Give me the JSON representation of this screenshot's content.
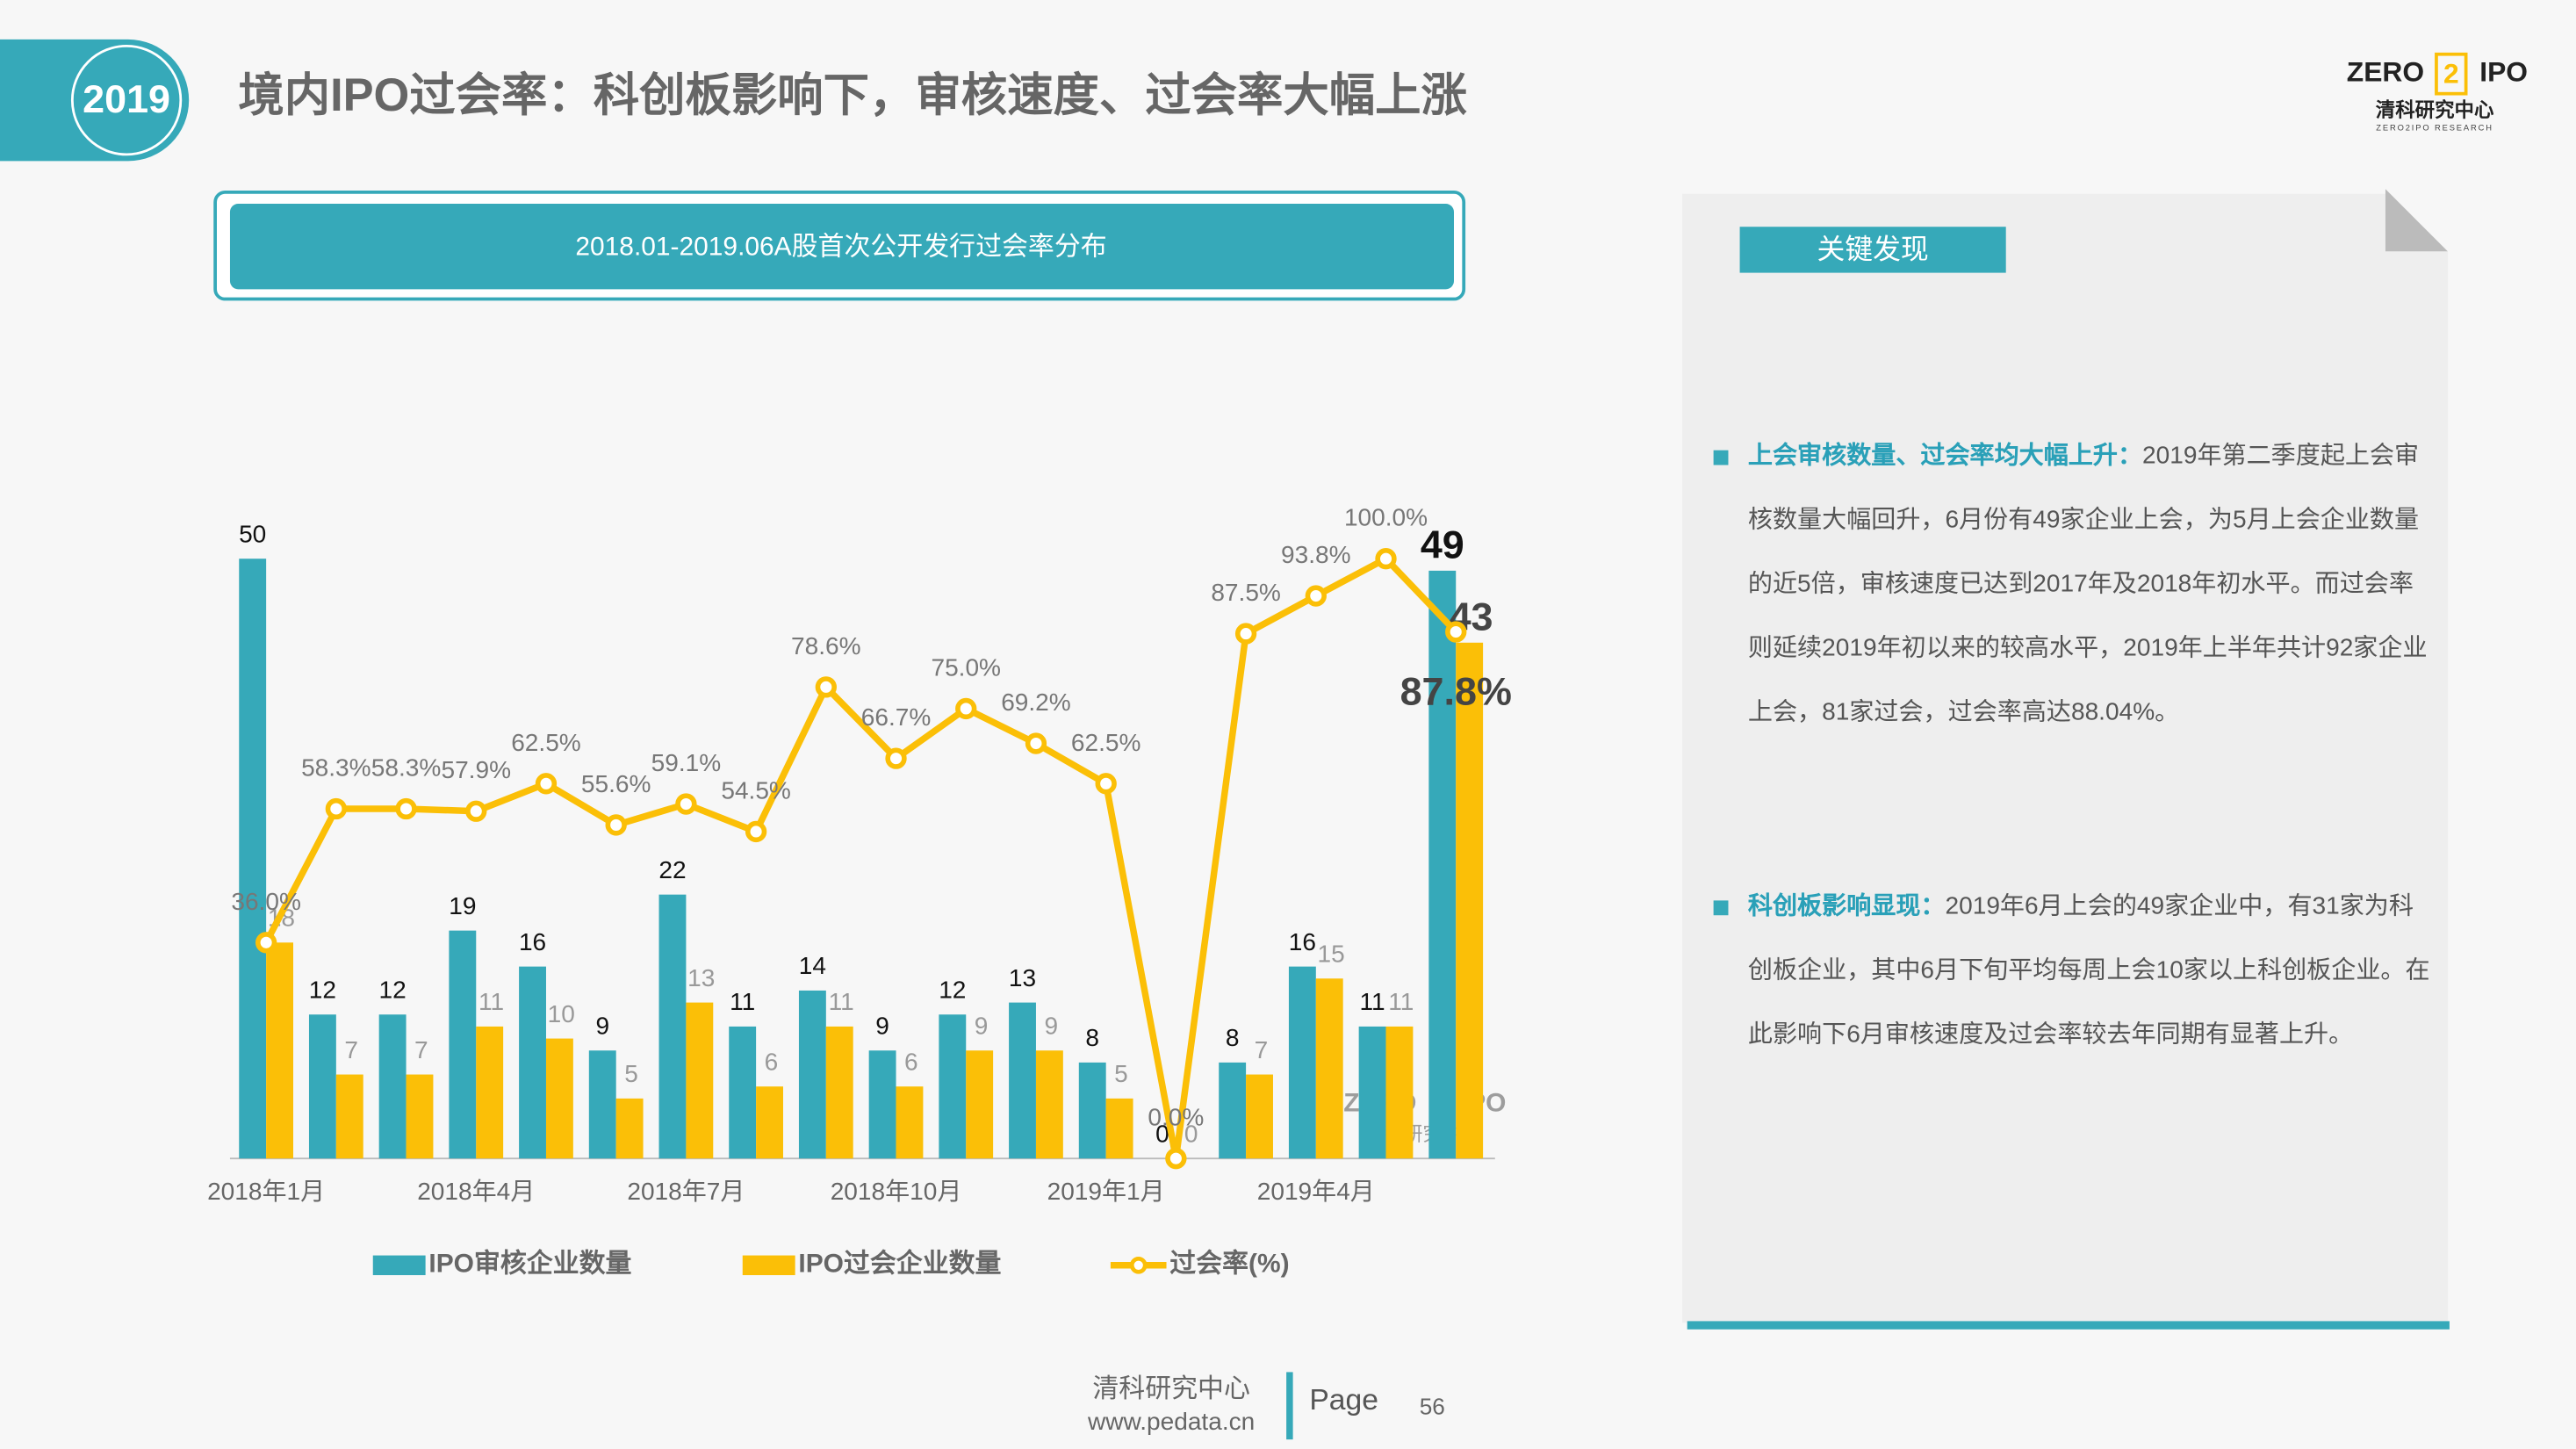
{
  "header": {
    "badge": "2019",
    "title": "境内IPO过会率：科创板影响下，审核速度、过会率大幅上涨"
  },
  "logo": {
    "left": "ZERO",
    "mid": "2",
    "right": "IPO",
    "name": "清科研究中心",
    "sub": "ZERO2IPO RESEARCH"
  },
  "chart_data": {
    "type": "bar",
    "title": "2018.01-2019.06A股首次公开发行过会率分布",
    "categories": [
      "2018年1月",
      null,
      null,
      "2018年4月",
      null,
      null,
      "2018年7月",
      null,
      null,
      "2018年10月",
      null,
      null,
      "2019年1月",
      null,
      null,
      "2019年4月",
      null,
      null
    ],
    "series": [
      {
        "name": "IPO审核企业数量",
        "color": "#36a9b9",
        "values": [
          50,
          12,
          12,
          19,
          16,
          9,
          22,
          11,
          14,
          9,
          12,
          13,
          8,
          0,
          8,
          16,
          11,
          49
        ]
      },
      {
        "name": "IPO过会企业数量",
        "color": "#fbbf07",
        "values": [
          18,
          7,
          7,
          11,
          10,
          5,
          13,
          6,
          11,
          6,
          9,
          9,
          5,
          0,
          7,
          15,
          11,
          43
        ]
      },
      {
        "name": "过会率(%)",
        "color": "#fbbf07",
        "type": "line",
        "axis": "y2",
        "values": [
          36.0,
          58.3,
          58.3,
          57.9,
          62.5,
          55.6,
          59.1,
          54.5,
          78.6,
          66.7,
          75.0,
          69.2,
          62.5,
          0.0,
          87.5,
          93.8,
          100.0,
          87.8
        ],
        "value_labels": [
          "36.0%",
          "58.3%",
          "58.3%",
          "57.9%",
          "62.5%",
          "55.6%",
          "59.1%",
          "54.5%",
          "78.6%",
          "66.7%",
          "75.0%",
          "69.2%",
          "62.5%",
          "0.0%",
          "87.5%",
          "93.8%",
          "100.0%",
          "87.8%"
        ]
      }
    ],
    "ylim": [
      0,
      50
    ],
    "y2lim": [
      0,
      100
    ]
  },
  "findings": {
    "title": "关键发现",
    "items": [
      {
        "lead": "上会审核数量、过会率均大幅上升：",
        "text": "2019年第二季度起上会审核数量大幅回升，6月份有49家企业上会，为5月上会企业数量的近5倍，审核速度已达到2017年及2018年初水平。而过会率则延续2019年初以来的较高水平，2019年上半年共计92家企业上会，81家过会，过会率高达88.04%。"
      },
      {
        "lead": "科创板影响显现：",
        "text": "2019年6月上会的49家企业中，有31家为科创板企业，其中6月下旬平均每周上会10家以上科创板企业。在此影响下6月审核速度及过会率较去年同期有显著上升。"
      }
    ]
  },
  "footer": {
    "org": "清科研究中心",
    "url": "www.pedata.cn",
    "page_label": "Page",
    "page": "56"
  }
}
